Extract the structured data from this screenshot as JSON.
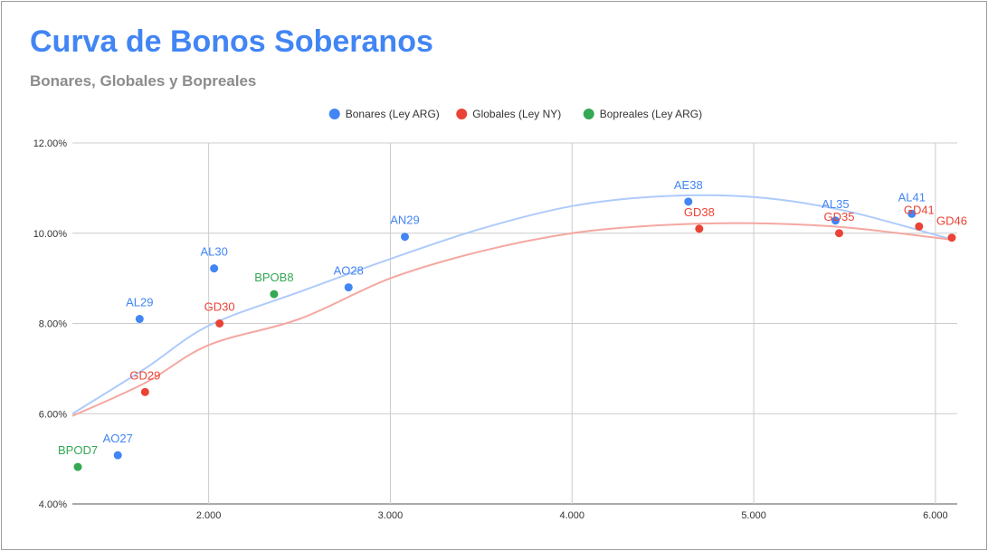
{
  "chart_data": {
    "type": "scatter",
    "title": "Curva de Bonos Soberanos",
    "subtitle": "Bonares, Globales y Bopreales",
    "xlabel": "",
    "ylabel": "",
    "xlim": [
      1.25,
      6.12
    ],
    "ylim": [
      0.04,
      0.12
    ],
    "x_ticks": [
      2,
      3,
      4,
      5,
      6
    ],
    "x_tick_labels": [
      "2.000",
      "3.000",
      "4.000",
      "5.000",
      "6.000"
    ],
    "y_ticks": [
      0.04,
      0.06,
      0.08,
      0.1,
      0.12
    ],
    "y_tick_labels": [
      "4.00%",
      "6.00%",
      "8.00%",
      "10.00%",
      "12.00%"
    ],
    "grid": true,
    "legend_position": "top-center",
    "series": [
      {
        "name": "Bonares (Ley ARG)",
        "color": "#4285f4",
        "trendline_color": "#aecbfa",
        "points": [
          {
            "label": "AO27",
            "x": 1.5,
            "y": 0.0508
          },
          {
            "label": "AL29",
            "x": 1.62,
            "y": 0.081
          },
          {
            "label": "AL30",
            "x": 2.03,
            "y": 0.0922
          },
          {
            "label": "AO28",
            "x": 2.77,
            "y": 0.088
          },
          {
            "label": "AN29",
            "x": 3.08,
            "y": 0.0992
          },
          {
            "label": "AE38",
            "x": 4.64,
            "y": 0.107
          },
          {
            "label": "AL35",
            "x": 5.45,
            "y": 0.1028
          },
          {
            "label": "AL41",
            "x": 5.87,
            "y": 0.1043
          }
        ],
        "trend": [
          {
            "x": 1.25,
            "y": 0.06
          },
          {
            "x": 1.65,
            "y": 0.07
          },
          {
            "x": 2.0,
            "y": 0.0795
          },
          {
            "x": 2.5,
            "y": 0.087
          },
          {
            "x": 3.0,
            "y": 0.0943
          },
          {
            "x": 3.5,
            "y": 0.101
          },
          {
            "x": 4.0,
            "y": 0.106
          },
          {
            "x": 4.5,
            "y": 0.1082
          },
          {
            "x": 5.0,
            "y": 0.108
          },
          {
            "x": 5.5,
            "y": 0.105
          },
          {
            "x": 6.1,
            "y": 0.0985
          }
        ]
      },
      {
        "name": "Globales (Ley NY)",
        "color": "#ea4335",
        "trendline_color": "#f4a8a1",
        "points": [
          {
            "label": "GD29",
            "x": 1.65,
            "y": 0.0648
          },
          {
            "label": "GD30",
            "x": 2.06,
            "y": 0.08
          },
          {
            "label": "GD38",
            "x": 4.7,
            "y": 0.101
          },
          {
            "label": "GD35",
            "x": 5.47,
            "y": 0.1
          },
          {
            "label": "GD41",
            "x": 5.91,
            "y": 0.1015
          },
          {
            "label": "GD46",
            "x": 6.09,
            "y": 0.099
          }
        ],
        "trend": [
          {
            "x": 1.25,
            "y": 0.0595
          },
          {
            "x": 1.65,
            "y": 0.0668
          },
          {
            "x": 2.0,
            "y": 0.0752
          },
          {
            "x": 2.5,
            "y": 0.081
          },
          {
            "x": 3.0,
            "y": 0.09
          },
          {
            "x": 3.5,
            "y": 0.096
          },
          {
            "x": 4.0,
            "y": 0.1
          },
          {
            "x": 4.5,
            "y": 0.1018
          },
          {
            "x": 5.0,
            "y": 0.1022
          },
          {
            "x": 5.5,
            "y": 0.1013
          },
          {
            "x": 6.1,
            "y": 0.0985
          }
        ]
      },
      {
        "name": "Bopreales (Ley ARG)",
        "color": "#34a853",
        "points": [
          {
            "label": "BPOD7",
            "x": 1.28,
            "y": 0.0482
          },
          {
            "label": "BPOB8",
            "x": 2.36,
            "y": 0.0865
          }
        ]
      }
    ]
  }
}
